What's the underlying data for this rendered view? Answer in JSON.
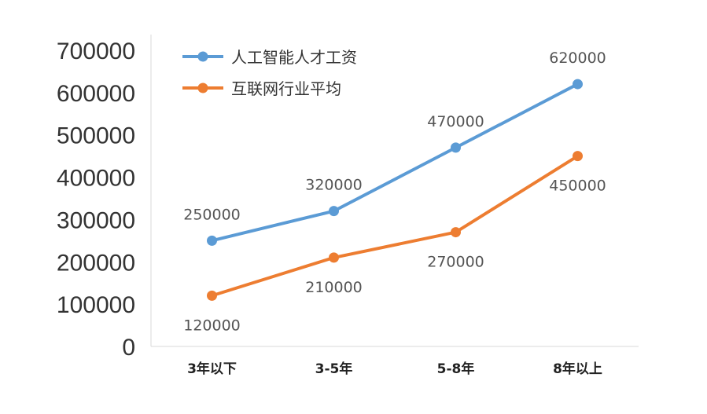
{
  "chart_data": {
    "type": "line",
    "categories": [
      "3年以下",
      "3-5年",
      "5-8年",
      "8年以上"
    ],
    "ylim": [
      0,
      700000
    ],
    "yticks": [
      "0",
      "100000",
      "200000",
      "300000",
      "400000",
      "500000",
      "600000",
      "700000"
    ],
    "grid": false,
    "legend_position": "top-left",
    "series": [
      {
        "name": "人工智能人才工资",
        "color": "#5B9BD5",
        "values": [
          250000,
          320000,
          470000,
          620000
        ],
        "labels": [
          "250000",
          "320000",
          "470000",
          "620000"
        ],
        "label_positions": [
          "above",
          "above",
          "above",
          "above"
        ]
      },
      {
        "name": "互联网行业平均",
        "color": "#ED7D31",
        "values": [
          120000,
          210000,
          270000,
          450000
        ],
        "labels": [
          "120000",
          "210000",
          "270000",
          "450000"
        ],
        "label_positions": [
          "below",
          "below",
          "below",
          "below"
        ]
      }
    ]
  }
}
